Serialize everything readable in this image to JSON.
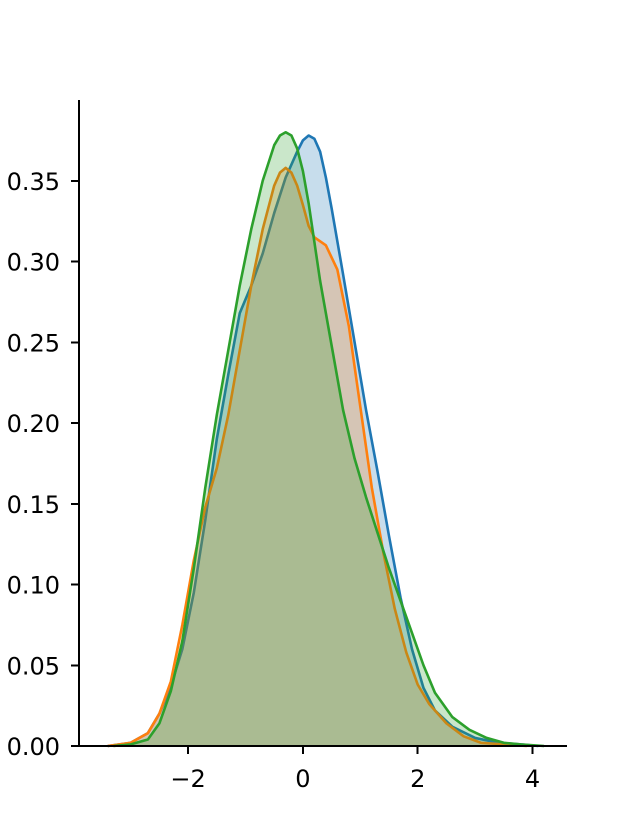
{
  "chart_data": {
    "type": "area",
    "title": "",
    "xlabel": "",
    "ylabel": "",
    "xlim": [
      -3.9,
      4.6
    ],
    "ylim": [
      0,
      0.4
    ],
    "grid": false,
    "legend": "none",
    "xticks": [
      {
        "value": -2,
        "label": "−2"
      },
      {
        "value": 0,
        "label": "0"
      },
      {
        "value": 2,
        "label": "2"
      },
      {
        "value": 4,
        "label": "4"
      }
    ],
    "yticks": [
      {
        "value": 0.0,
        "label": "0.00"
      },
      {
        "value": 0.05,
        "label": "0.05"
      },
      {
        "value": 0.1,
        "label": "0.10"
      },
      {
        "value": 0.15,
        "label": "0.15"
      },
      {
        "value": 0.2,
        "label": "0.20"
      },
      {
        "value": 0.25,
        "label": "0.25"
      },
      {
        "value": 0.3,
        "label": "0.30"
      },
      {
        "value": 0.35,
        "label": "0.35"
      }
    ],
    "series": [
      {
        "color": "#1f77b4",
        "fill_opacity": 0.25,
        "x": [
          -3.4,
          -3.0,
          -2.7,
          -2.5,
          -2.3,
          -2.1,
          -1.9,
          -1.7,
          -1.5,
          -1.3,
          -1.1,
          -0.9,
          -0.7,
          -0.5,
          -0.3,
          -0.1,
          0.0,
          0.1,
          0.2,
          0.3,
          0.4,
          0.5,
          0.7,
          0.9,
          1.1,
          1.3,
          1.5,
          1.7,
          1.9,
          2.1,
          2.3,
          2.6,
          3.0,
          3.4,
          3.8,
          4.1
        ],
        "y": [
          0.0,
          0.002,
          0.008,
          0.02,
          0.037,
          0.06,
          0.095,
          0.14,
          0.19,
          0.23,
          0.268,
          0.285,
          0.305,
          0.33,
          0.352,
          0.368,
          0.375,
          0.378,
          0.376,
          0.368,
          0.352,
          0.333,
          0.292,
          0.25,
          0.208,
          0.17,
          0.13,
          0.092,
          0.06,
          0.036,
          0.022,
          0.012,
          0.005,
          0.002,
          0.001,
          0.0
        ]
      },
      {
        "color": "#ff7f0e",
        "fill_opacity": 0.25,
        "x": [
          -3.4,
          -3.0,
          -2.7,
          -2.5,
          -2.3,
          -2.1,
          -1.9,
          -1.7,
          -1.5,
          -1.3,
          -1.1,
          -0.9,
          -0.7,
          -0.5,
          -0.4,
          -0.3,
          -0.2,
          -0.1,
          0.0,
          0.1,
          0.2,
          0.4,
          0.6,
          0.8,
          1.0,
          1.2,
          1.4,
          1.6,
          1.8,
          2.0,
          2.2,
          2.5,
          2.8,
          3.1,
          3.5,
          3.9
        ],
        "y": [
          0.0,
          0.002,
          0.008,
          0.02,
          0.04,
          0.075,
          0.115,
          0.148,
          0.172,
          0.205,
          0.245,
          0.285,
          0.32,
          0.347,
          0.355,
          0.358,
          0.355,
          0.347,
          0.335,
          0.322,
          0.315,
          0.31,
          0.295,
          0.26,
          0.21,
          0.16,
          0.12,
          0.085,
          0.058,
          0.038,
          0.026,
          0.014,
          0.006,
          0.002,
          0.001,
          0.0
        ]
      },
      {
        "color": "#2ca02c",
        "fill_opacity": 0.25,
        "x": [
          -3.3,
          -3.0,
          -2.7,
          -2.5,
          -2.3,
          -2.1,
          -1.9,
          -1.7,
          -1.5,
          -1.3,
          -1.1,
          -0.9,
          -0.7,
          -0.5,
          -0.4,
          -0.3,
          -0.2,
          -0.1,
          0.0,
          0.1,
          0.2,
          0.3,
          0.5,
          0.7,
          0.9,
          1.1,
          1.3,
          1.5,
          1.7,
          1.9,
          2.1,
          2.3,
          2.6,
          2.9,
          3.2,
          3.5,
          3.8,
          4.2
        ],
        "y": [
          0.0,
          0.001,
          0.004,
          0.014,
          0.034,
          0.065,
          0.11,
          0.16,
          0.205,
          0.245,
          0.285,
          0.32,
          0.35,
          0.372,
          0.378,
          0.38,
          0.378,
          0.37,
          0.356,
          0.336,
          0.312,
          0.288,
          0.248,
          0.208,
          0.178,
          0.154,
          0.132,
          0.11,
          0.09,
          0.07,
          0.05,
          0.033,
          0.018,
          0.01,
          0.005,
          0.002,
          0.001,
          0.0
        ]
      }
    ]
  }
}
